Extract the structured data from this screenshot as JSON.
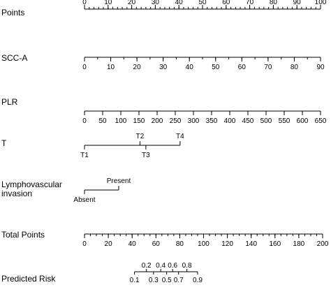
{
  "chart_data": {
    "type": "nomogram",
    "title": "",
    "rows": [
      {
        "label": [
          "Points"
        ],
        "scale_range": [
          0,
          100
        ],
        "labels_above": true,
        "ticks": [
          {
            "value": 0,
            "label": "0"
          },
          {
            "value": 10,
            "label": "10"
          },
          {
            "value": 20,
            "label": "20"
          },
          {
            "value": 30,
            "label": "30"
          },
          {
            "value": 40,
            "label": "40"
          },
          {
            "value": 50,
            "label": "50"
          },
          {
            "value": 60,
            "label": "60"
          },
          {
            "value": 70,
            "label": "70"
          },
          {
            "value": 80,
            "label": "80"
          },
          {
            "value": 90,
            "label": "90"
          },
          {
            "value": 100,
            "label": "100"
          }
        ],
        "minor_step": 2
      },
      {
        "label": [
          "SCC-A"
        ],
        "scale_range": [
          0,
          90
        ],
        "ticks": [
          {
            "value": 0,
            "label": "0"
          },
          {
            "value": 10,
            "label": "10"
          },
          {
            "value": 20,
            "label": "20"
          },
          {
            "value": 30,
            "label": "30"
          },
          {
            "value": 40,
            "label": "40"
          },
          {
            "value": 50,
            "label": "50"
          },
          {
            "value": 60,
            "label": "60"
          },
          {
            "value": 70,
            "label": "70"
          },
          {
            "value": 80,
            "label": "80"
          },
          {
            "value": 90,
            "label": "90"
          }
        ],
        "minor_step": 5
      },
      {
        "label": [
          "PLR"
        ],
        "scale_range": [
          0,
          650
        ],
        "ticks": [
          {
            "value": 0,
            "label": "0"
          },
          {
            "value": 50,
            "label": "50"
          },
          {
            "value": 100,
            "label": "100"
          },
          {
            "value": 150,
            "label": "150"
          },
          {
            "value": 200,
            "label": "200"
          },
          {
            "value": 250,
            "label": "250"
          },
          {
            "value": 300,
            "label": "300"
          },
          {
            "value": 350,
            "label": "350"
          },
          {
            "value": 400,
            "label": "400"
          },
          {
            "value": 450,
            "label": "450"
          },
          {
            "value": 500,
            "label": "500"
          },
          {
            "value": 550,
            "label": "550"
          },
          {
            "value": 600,
            "label": "600"
          },
          {
            "value": 650,
            "label": "650"
          }
        ]
      },
      {
        "label": [
          "T"
        ],
        "categories": [
          {
            "label": "T1",
            "points": 0,
            "position": "below"
          },
          {
            "label": "T2",
            "points": 23.5,
            "position": "above"
          },
          {
            "label": "T3",
            "points": 26,
            "position": "below"
          },
          {
            "label": "T4",
            "points": 40.5,
            "position": "above"
          }
        ]
      },
      {
        "label": [
          "Lymphovascular",
          "invasion"
        ],
        "categories": [
          {
            "label": "Absent",
            "points": 0,
            "position": "below"
          },
          {
            "label": "Present",
            "points": 14.5,
            "position": "above"
          }
        ]
      },
      {
        "label": [
          "Total Points"
        ],
        "scale_range": [
          0,
          200
        ],
        "ticks": [
          {
            "value": 0,
            "label": "0"
          },
          {
            "value": 20,
            "label": "20"
          },
          {
            "value": 40,
            "label": "40"
          },
          {
            "value": 60,
            "label": "60"
          },
          {
            "value": 80,
            "label": "80"
          },
          {
            "value": 100,
            "label": "100"
          },
          {
            "value": 120,
            "label": "120"
          },
          {
            "value": 140,
            "label": "140"
          },
          {
            "value": 160,
            "label": "160"
          },
          {
            "value": 180,
            "label": "180"
          },
          {
            "value": 200,
            "label": "200"
          }
        ],
        "minor_step": 5
      },
      {
        "label": [
          "Predicted Risk"
        ],
        "ticks": [
          {
            "value": 0.1,
            "label": "0.1",
            "total_points": 42,
            "position": "below"
          },
          {
            "value": 0.2,
            "label": "0.2",
            "total_points": 52,
            "position": "above"
          },
          {
            "value": 0.3,
            "label": "0.3",
            "total_points": 58,
            "position": "below"
          },
          {
            "value": 0.4,
            "label": "0.4",
            "total_points": 64,
            "position": "above"
          },
          {
            "value": 0.5,
            "label": "0.5",
            "total_points": 69,
            "position": "below"
          },
          {
            "value": 0.6,
            "label": "0.6",
            "total_points": 74,
            "position": "above"
          },
          {
            "value": 0.7,
            "label": "0.7",
            "total_points": 79,
            "position": "below"
          },
          {
            "value": 0.8,
            "label": "0.8",
            "total_points": 86,
            "position": "above"
          },
          {
            "value": 0.9,
            "label": "0.9",
            "total_points": 95,
            "position": "below"
          }
        ]
      }
    ]
  }
}
